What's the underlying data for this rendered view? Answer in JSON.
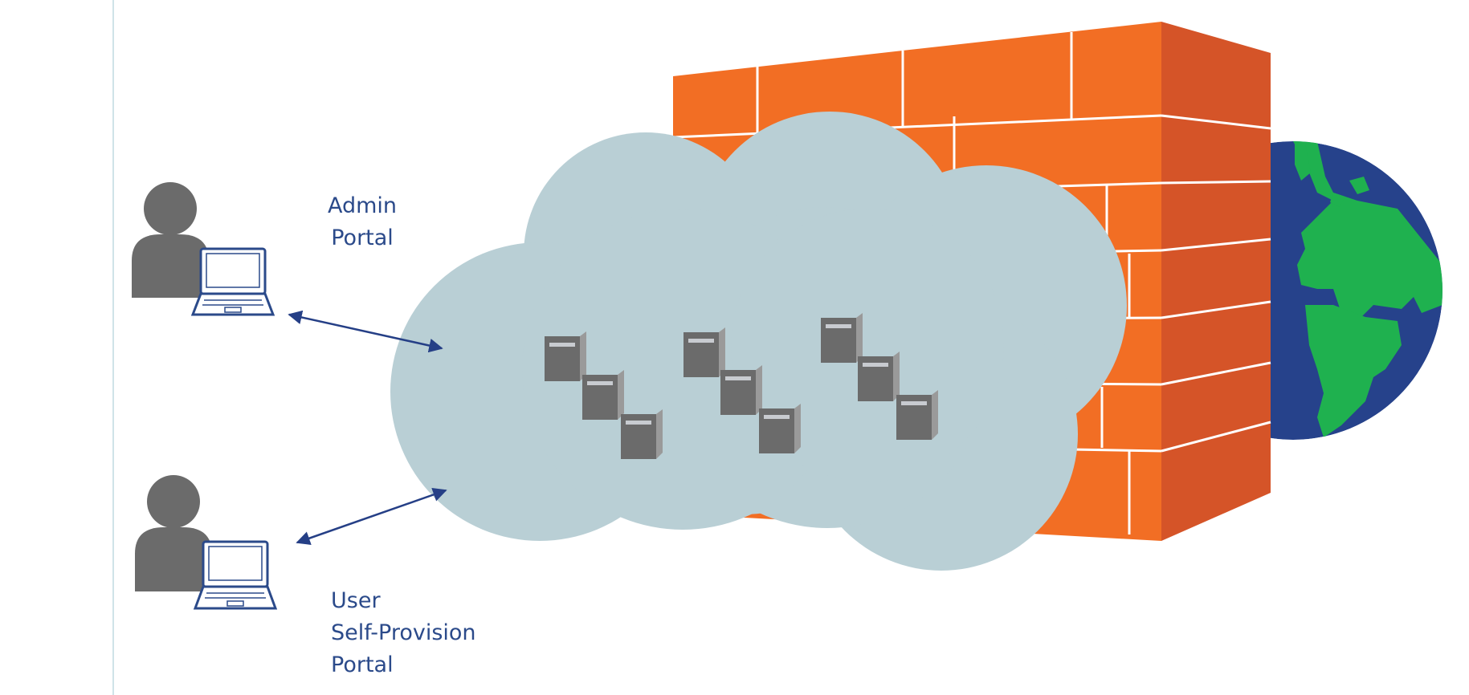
{
  "labels": {
    "admin_portal": [
      "Admin",
      "Portal"
    ],
    "user_portal": [
      "User",
      "Self-Provision",
      "Portal"
    ]
  },
  "colors": {
    "wall_front": "#f26e24",
    "wall_side": "#d55428",
    "mortar": "#ffffff",
    "cloud": "#b9cfd5",
    "server": "#6b6b6b",
    "server_edge": "#9a9a9a",
    "server_slot": "#c8cbd0",
    "person": "#6b6b6b",
    "laptop_stroke": "#2b4a8a",
    "arrow": "#253f86",
    "label_text": "#2b4a8a",
    "ocean": "#26428b",
    "land": "#1fb14f",
    "divider": "#cfe3e8"
  }
}
